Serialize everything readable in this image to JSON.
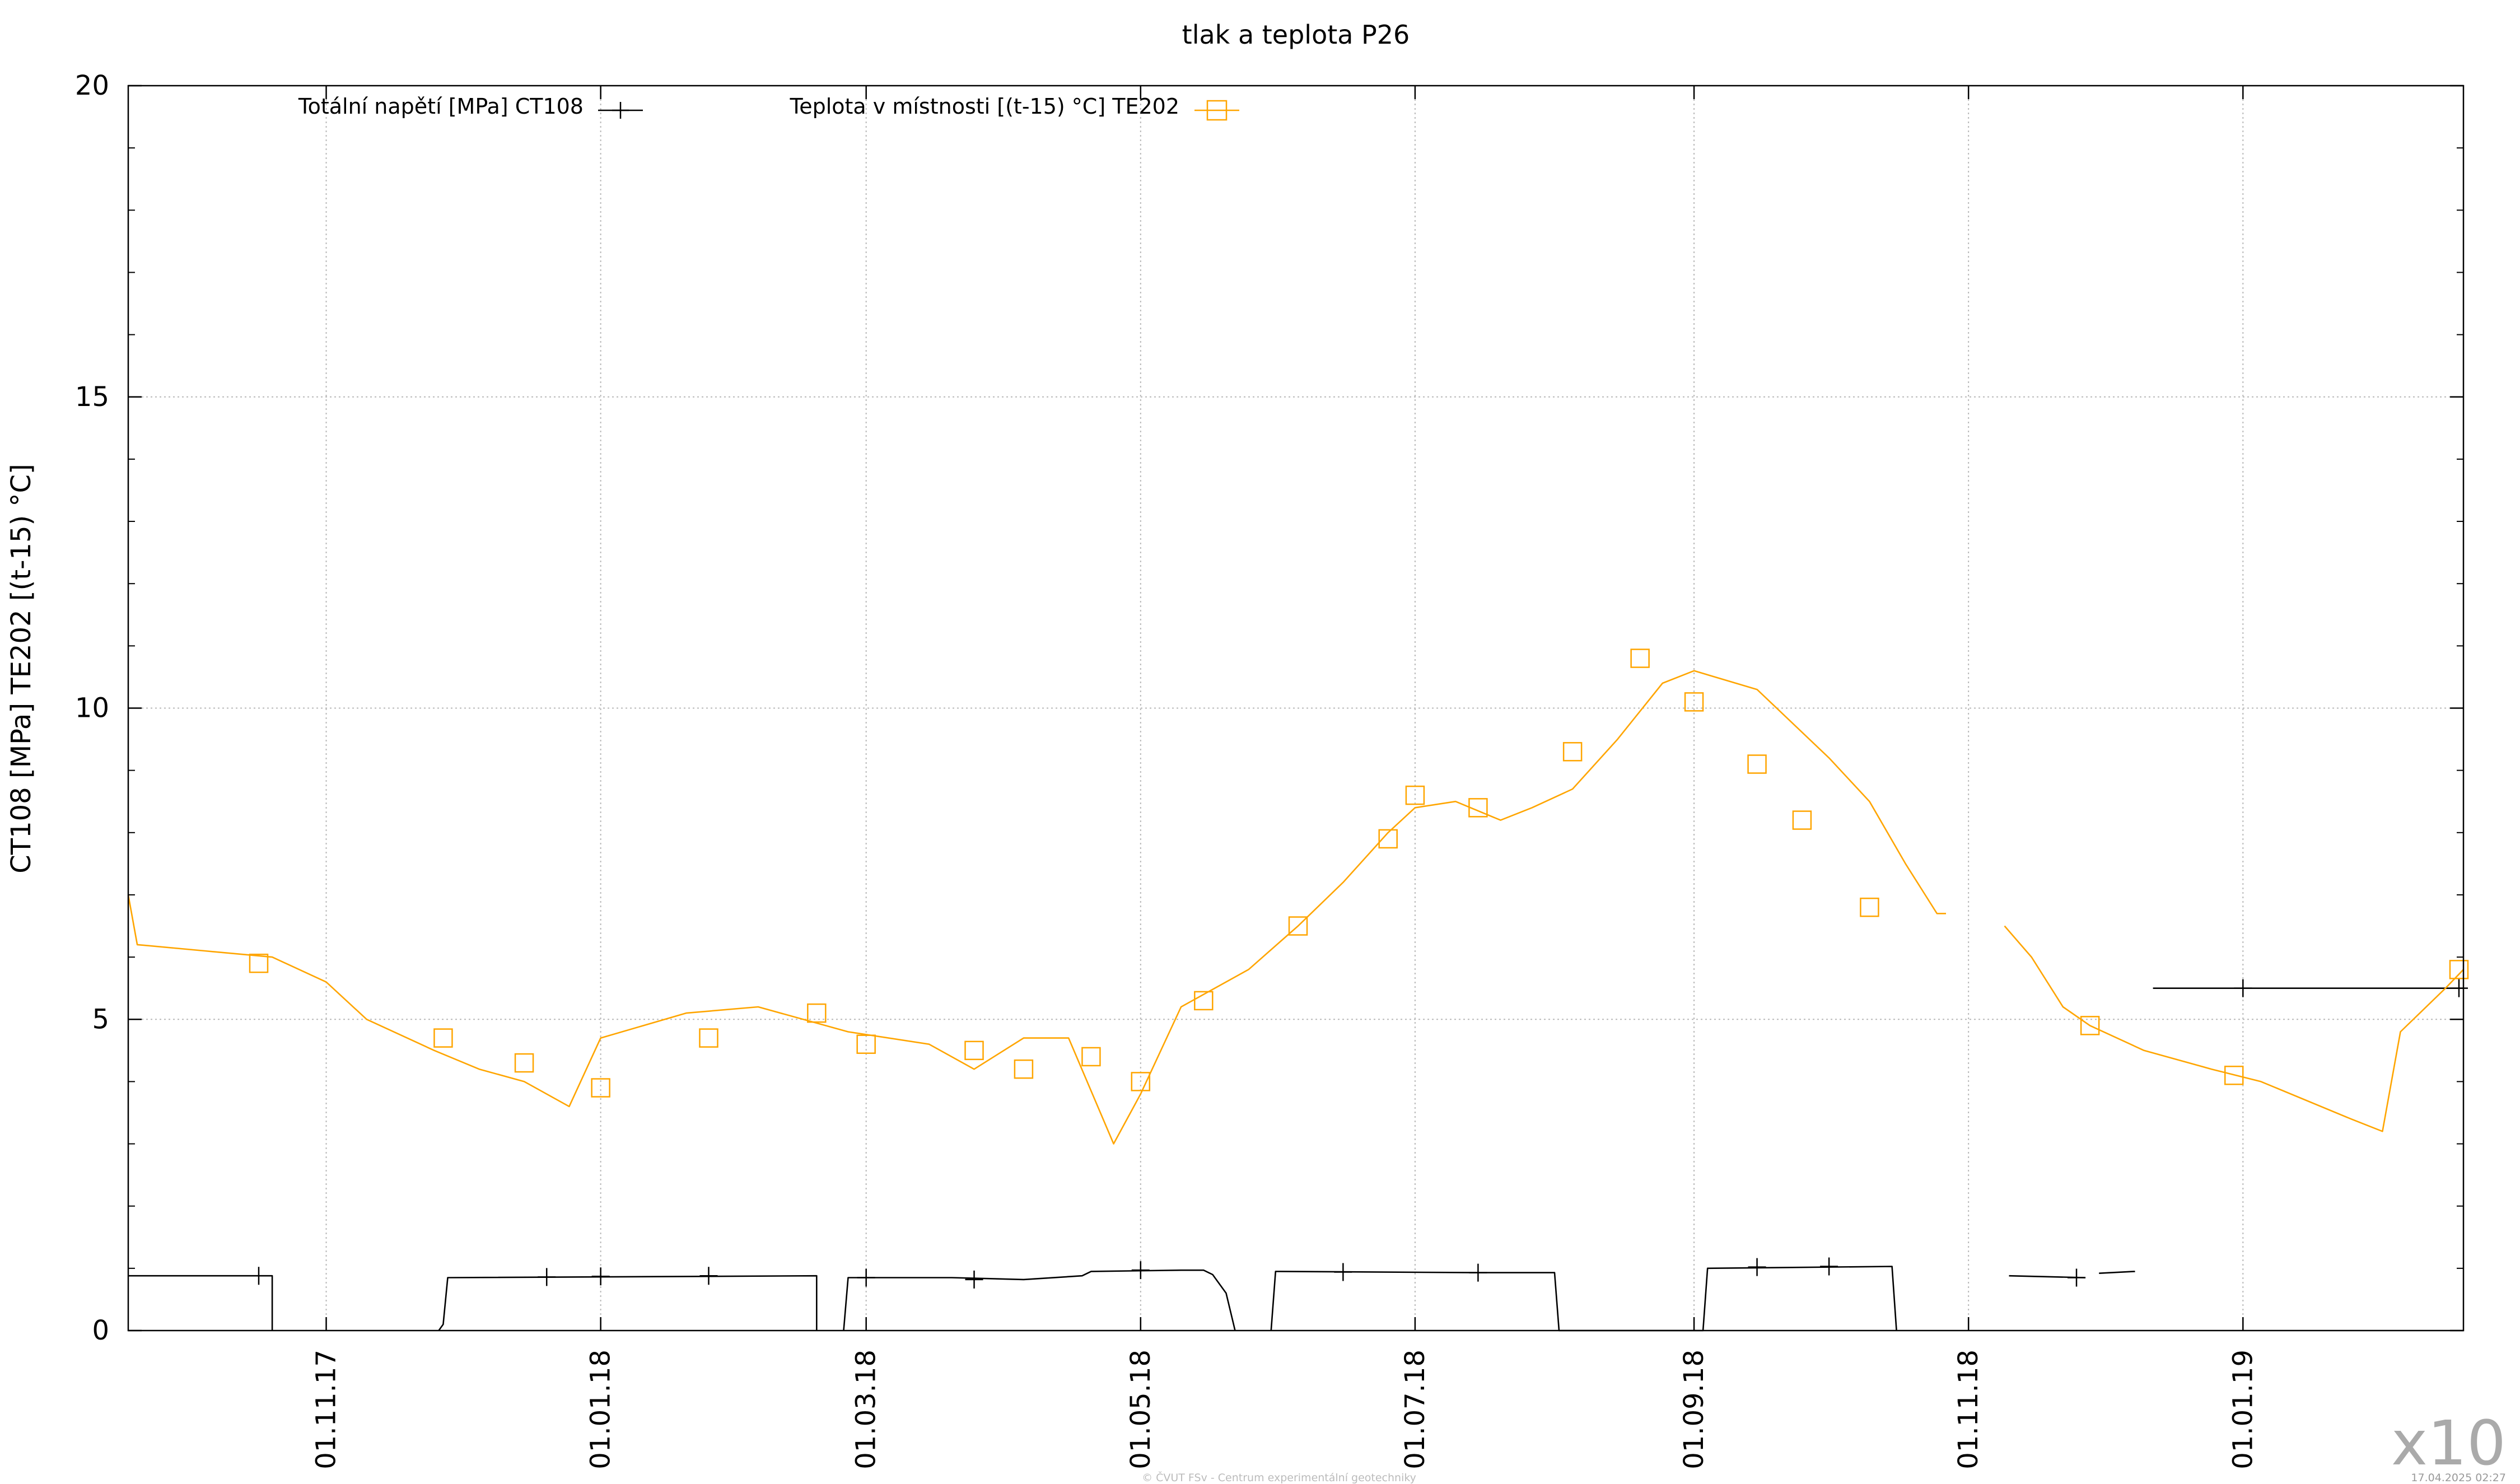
{
  "chart_data": {
    "type": "line",
    "title": "tlak a teplota P26",
    "ylabel": "CT108 [MPa] TE202 [(t-15) °C]",
    "xlabel": "",
    "ylim": [
      0,
      20
    ],
    "yticks": [
      0,
      5,
      10,
      15,
      20
    ],
    "xlim": [
      "2017-09-18",
      "2019-02-19"
    ],
    "xticks": [
      {
        "date": "2017-11-01",
        "label": "01.11.17"
      },
      {
        "date": "2018-01-01",
        "label": "01.01.18"
      },
      {
        "date": "2018-03-01",
        "label": "01.03.18"
      },
      {
        "date": "2018-05-01",
        "label": "01.05.18"
      },
      {
        "date": "2018-07-01",
        "label": "01.07.18"
      },
      {
        "date": "2018-09-01",
        "label": "01.09.18"
      },
      {
        "date": "2018-11-01",
        "label": "01.11.18"
      },
      {
        "date": "2019-01-01",
        "label": "01.01.19"
      }
    ],
    "grid": true,
    "legend_position": "top",
    "series": [
      {
        "name": "Totální napětí [MPa] CT108",
        "color": "#000000",
        "marker": "plus",
        "segments": [
          [
            [
              "2017-09-18",
              0.88
            ],
            [
              "2017-10-20",
              0.88
            ],
            [
              "2017-10-20",
              0.0
            ]
          ],
          [
            [
              "2017-11-26",
              0.0
            ],
            [
              "2017-11-27",
              0.1
            ],
            [
              "2017-11-28",
              0.85
            ],
            [
              "2018-02-18",
              0.88
            ],
            [
              "2018-02-18",
              0.0
            ]
          ],
          [
            [
              "2018-02-24",
              0.0
            ],
            [
              "2018-02-25",
              0.85
            ],
            [
              "2018-03-20",
              0.85
            ],
            [
              "2018-04-05",
              0.82
            ],
            [
              "2018-04-18",
              0.88
            ],
            [
              "2018-04-20",
              0.95
            ],
            [
              "2018-05-10",
              0.97
            ],
            [
              "2018-05-15",
              0.97
            ],
            [
              "2018-05-17",
              0.9
            ],
            [
              "2018-05-20",
              0.6
            ],
            [
              "2018-05-22",
              0.0
            ]
          ],
          [
            [
              "2018-05-30",
              0.0
            ],
            [
              "2018-05-31",
              0.95
            ],
            [
              "2018-07-15",
              0.93
            ],
            [
              "2018-08-01",
              0.93
            ],
            [
              "2018-08-02",
              0.0
            ],
            [
              "2018-09-03",
              0.0
            ],
            [
              "2018-09-04",
              1.0
            ],
            [
              "2018-10-15",
              1.03
            ],
            [
              "2018-10-16",
              0.0
            ]
          ],
          [
            [
              "2018-11-10",
              0.88
            ],
            [
              "2018-11-27",
              0.85
            ]
          ],
          [
            [
              "2018-11-30",
              0.92
            ],
            [
              "2018-12-08",
              0.95
            ]
          ],
          [
            [
              "2018-12-12",
              5.5
            ],
            [
              "2019-02-19",
              5.5
            ]
          ]
        ],
        "markers": [
          [
            "2017-10-17",
            0.88
          ],
          [
            "2017-12-20",
            0.86
          ],
          [
            "2018-01-01",
            0.87
          ],
          [
            "2018-01-25",
            0.88
          ],
          [
            "2018-03-01",
            0.85
          ],
          [
            "2018-03-25",
            0.82
          ],
          [
            "2018-05-01",
            0.97
          ],
          [
            "2018-06-15",
            0.94
          ],
          [
            "2018-07-15",
            0.93
          ],
          [
            "2018-09-15",
            1.02
          ],
          [
            "2018-10-01",
            1.03
          ],
          [
            "2018-11-25",
            0.85
          ],
          [
            "2019-01-01",
            5.5
          ],
          [
            "2019-02-18",
            5.5
          ]
        ]
      },
      {
        "name": "Teplota v místnosti [(t-15) °C] TE202",
        "color": "#FFA500",
        "marker": "square",
        "segments": [
          [
            [
              "2017-09-18",
              7.0
            ],
            [
              "2017-09-20",
              6.2
            ],
            [
              "2017-10-05",
              6.1
            ],
            [
              "2017-10-20",
              6.0
            ],
            [
              "2017-11-01",
              5.6
            ],
            [
              "2017-11-10",
              5.0
            ],
            [
              "2017-11-25",
              4.5
            ],
            [
              "2017-12-05",
              4.2
            ],
            [
              "2017-12-15",
              4.0
            ],
            [
              "2017-12-25",
              3.6
            ],
            [
              "2018-01-01",
              4.7
            ],
            [
              "2018-01-20",
              5.1
            ],
            [
              "2018-02-05",
              5.2
            ],
            [
              "2018-02-25",
              4.8
            ],
            [
              "2018-03-15",
              4.6
            ],
            [
              "2018-03-25",
              4.2
            ],
            [
              "2018-04-05",
              4.7
            ],
            [
              "2018-04-15",
              4.7
            ],
            [
              "2018-04-25",
              3.0
            ],
            [
              "2018-05-01",
              3.8
            ],
            [
              "2018-05-10",
              5.2
            ],
            [
              "2018-05-25",
              5.8
            ],
            [
              "2018-06-05",
              6.5
            ],
            [
              "2018-06-15",
              7.2
            ],
            [
              "2018-06-25",
              8.0
            ],
            [
              "2018-07-01",
              8.4
            ],
            [
              "2018-07-10",
              8.5
            ],
            [
              "2018-07-20",
              8.2
            ],
            [
              "2018-07-27",
              8.4
            ],
            [
              "2018-08-05",
              8.7
            ],
            [
              "2018-08-15",
              9.5
            ],
            [
              "2018-08-25",
              10.4
            ],
            [
              "2018-09-01",
              10.6
            ],
            [
              "2018-09-15",
              10.3
            ],
            [
              "2018-10-01",
              9.2
            ],
            [
              "2018-10-10",
              8.5
            ],
            [
              "2018-10-18",
              7.5
            ],
            [
              "2018-10-25",
              6.7
            ],
            [
              "2018-10-27",
              6.7
            ]
          ],
          [
            [
              "2018-11-09",
              6.5
            ],
            [
              "2018-11-15",
              6.0
            ],
            [
              "2018-11-22",
              5.2
            ],
            [
              "2018-11-28",
              4.9
            ],
            [
              "2018-12-10",
              4.5
            ],
            [
              "2018-12-25",
              4.2
            ],
            [
              "2019-01-05",
              4.0
            ],
            [
              "2019-01-25",
              3.4
            ],
            [
              "2019-02-01",
              3.2
            ],
            [
              "2019-02-05",
              4.8
            ],
            [
              "2019-02-15",
              5.5
            ],
            [
              "2019-02-19",
              5.8
            ]
          ]
        ],
        "markers": [
          [
            "2017-10-17",
            5.9
          ],
          [
            "2017-11-27",
            4.7
          ],
          [
            "2017-12-15",
            4.3
          ],
          [
            "2018-01-01",
            3.9
          ],
          [
            "2018-01-25",
            4.7
          ],
          [
            "2018-02-18",
            5.1
          ],
          [
            "2018-03-01",
            4.6
          ],
          [
            "2018-03-25",
            4.5
          ],
          [
            "2018-04-05",
            4.2
          ],
          [
            "2018-04-20",
            4.4
          ],
          [
            "2018-05-01",
            4.0
          ],
          [
            "2018-05-15",
            5.3
          ],
          [
            "2018-06-05",
            6.5
          ],
          [
            "2018-06-25",
            7.9
          ],
          [
            "2018-07-01",
            8.6
          ],
          [
            "2018-07-15",
            8.4
          ],
          [
            "2018-08-05",
            9.3
          ],
          [
            "2018-08-20",
            10.8
          ],
          [
            "2018-09-01",
            10.1
          ],
          [
            "2018-09-15",
            9.1
          ],
          [
            "2018-09-25",
            8.2
          ],
          [
            "2018-10-10",
            6.8
          ],
          [
            "2018-11-28",
            4.9
          ],
          [
            "2018-12-30",
            4.1
          ],
          [
            "2019-02-18",
            5.8
          ]
        ]
      }
    ]
  },
  "multiplier": "x10",
  "footer": {
    "copyright": "© ČVUT FSv - Centrum experimentální geotechniky",
    "timestamp": "17.04.2025 02:27"
  }
}
